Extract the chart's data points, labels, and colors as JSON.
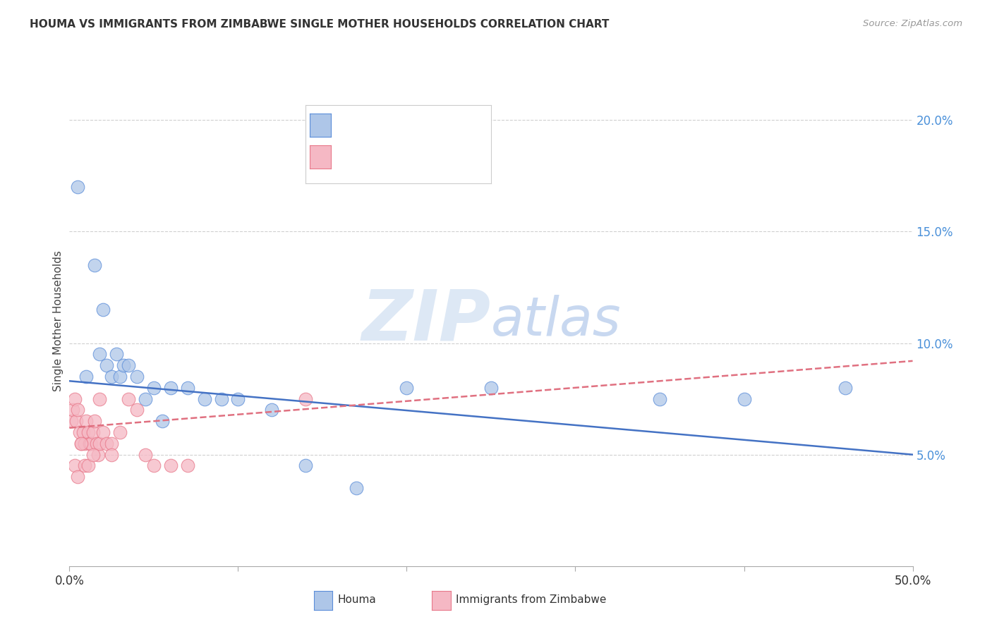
{
  "title": "HOUMA VS IMMIGRANTS FROM ZIMBABWE SINGLE MOTHER HOUSEHOLDS CORRELATION CHART",
  "source": "Source: ZipAtlas.com",
  "ylabel": "Single Mother Households",
  "legend_label_blue": "Houma",
  "legend_label_pink": "Immigrants from Zimbabwe",
  "blue_fill": "#aec6e8",
  "pink_fill": "#f5b8c4",
  "blue_edge": "#5b8dd9",
  "pink_edge": "#e8788a",
  "blue_line": "#4472c4",
  "pink_line": "#e07080",
  "grid_color": "#d0d0d0",
  "watermark_color": "#dde8f5",
  "xlim": [
    0,
    50
  ],
  "ylim": [
    0,
    22
  ],
  "ytick_vals": [
    5,
    10,
    15,
    20
  ],
  "xtick_vals": [
    0,
    10,
    20,
    30,
    40,
    50
  ],
  "blue_line_start_y": 8.3,
  "blue_line_end_y": 5.0,
  "pink_line_start_y": 6.2,
  "pink_line_end_y": 9.2,
  "houma_x": [
    0.5,
    1.0,
    1.5,
    1.8,
    2.0,
    2.2,
    2.5,
    2.8,
    3.0,
    3.2,
    3.5,
    4.0,
    4.5,
    5.0,
    5.5,
    6.0,
    7.0,
    8.0,
    9.0,
    10.0,
    12.0,
    14.0,
    17.0,
    20.0,
    25.0,
    35.0,
    40.0,
    46.0
  ],
  "houma_y": [
    17.0,
    8.5,
    13.5,
    9.5,
    11.5,
    9.0,
    8.5,
    9.5,
    8.5,
    9.0,
    9.0,
    8.5,
    7.5,
    8.0,
    6.5,
    8.0,
    8.0,
    7.5,
    7.5,
    7.5,
    7.0,
    4.5,
    3.5,
    8.0,
    8.0,
    7.5,
    7.5,
    8.0
  ],
  "zimb_x": [
    0.1,
    0.2,
    0.3,
    0.4,
    0.5,
    0.6,
    0.7,
    0.8,
    0.9,
    1.0,
    1.1,
    1.2,
    1.3,
    1.4,
    1.5,
    1.6,
    1.7,
    1.8,
    2.0,
    2.2,
    2.5,
    3.0,
    3.5,
    4.0,
    5.0,
    6.0,
    7.0,
    0.3,
    0.5,
    0.7,
    0.9,
    1.1,
    1.4,
    1.8,
    2.5,
    4.5,
    14.0
  ],
  "zimb_y": [
    6.5,
    7.0,
    7.5,
    6.5,
    7.0,
    6.0,
    5.5,
    6.0,
    5.5,
    6.5,
    6.0,
    5.5,
    5.5,
    6.0,
    6.5,
    5.5,
    5.0,
    5.5,
    6.0,
    5.5,
    5.5,
    6.0,
    7.5,
    7.0,
    4.5,
    4.5,
    4.5,
    4.5,
    4.0,
    5.5,
    4.5,
    4.5,
    5.0,
    7.5,
    5.0,
    5.0,
    7.5
  ]
}
